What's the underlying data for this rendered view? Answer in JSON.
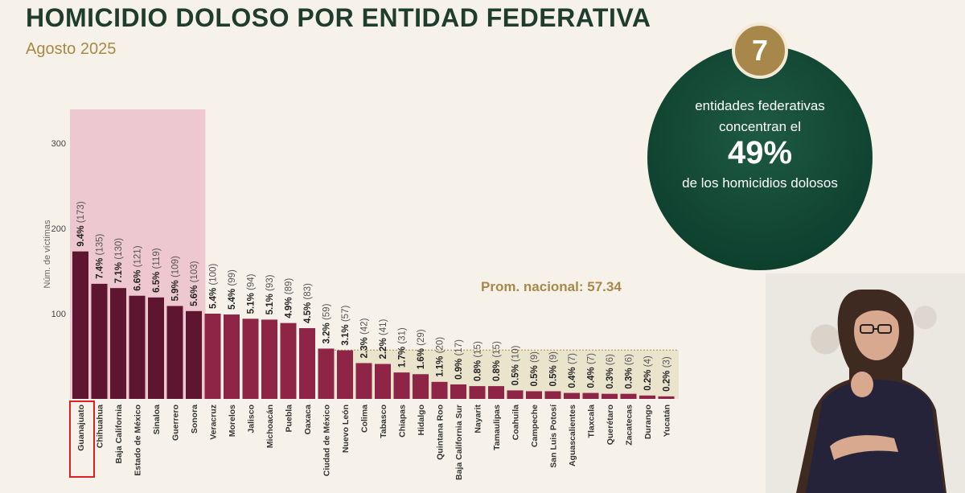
{
  "header": {
    "title": "HOMICIDIO DOLOSO POR ENTIDAD FEDERATIVA",
    "subtitle": "Agosto 2025"
  },
  "callout": {
    "count": "7",
    "line1": "entidades federativas",
    "line2": "concentran el",
    "percent": "49%",
    "line4": "de los homicidios dolosos"
  },
  "colors": {
    "highlight_bars": "#5e1530",
    "other_bars": "#8e2446",
    "highlight_area": "#edc8d1",
    "average_area": "#ebe4cd",
    "average_label": "#a8884a",
    "circle": "#0f4230",
    "badge": "#a8884a"
  },
  "interpreter_panel": {
    "content": "sign-language-interpreter-video"
  },
  "chart_data": {
    "type": "bar",
    "ylabel": "Núm. de víctimas",
    "xlabel": "",
    "ylim": [
      0,
      300
    ],
    "yticks": [
      100,
      200,
      300
    ],
    "categories": [
      "Guanajuato",
      "Chihuahua",
      "Baja California",
      "Estado de México",
      "Sinaloa",
      "Guerrero",
      "Sonora",
      "Veracruz",
      "Morelos",
      "Jalisco",
      "Michoacán",
      "Puebla",
      "Oaxaca",
      "Ciudad de México",
      "Nuevo León",
      "Colima",
      "Tabasco",
      "Chiapas",
      "Hidalgo",
      "Quintana Roo",
      "Baja California Sur",
      "Nayarit",
      "Tamaulipas",
      "Coahuila",
      "Campeche",
      "San Luis Potosí",
      "Aguascalientes",
      "Tlaxcala",
      "Querétaro",
      "Zacatecas",
      "Durango",
      "Yucatán"
    ],
    "values": [
      173,
      135,
      130,
      121,
      119,
      109,
      103,
      100,
      99,
      94,
      93,
      89,
      83,
      59,
      57,
      42,
      41,
      31,
      29,
      20,
      17,
      15,
      15,
      10,
      9,
      9,
      7,
      7,
      6,
      6,
      4,
      3
    ],
    "pct_labels": [
      "9.4%",
      "7.4%",
      "7.1%",
      "6.6%",
      "6.5%",
      "5.9%",
      "5.6%",
      "5.4%",
      "5.4%",
      "5.1%",
      "5.1%",
      "4.9%",
      "4.5%",
      "3.2%",
      "3.1%",
      "2.3%",
      "2.2%",
      "1.7%",
      "1.6%",
      "1.1%",
      "0.9%",
      "0.8%",
      "0.8%",
      "0.5%",
      "0.5%",
      "0.5%",
      "0.4%",
      "0.4%",
      "0.3%",
      "0.3%",
      "0.2%",
      "0.2%"
    ],
    "count_labels": [
      "(173)",
      "(135)",
      "(130)",
      "(121)",
      "(119)",
      "(109)",
      "(103)",
      "(100)",
      "(99)",
      "(94)",
      "(93)",
      "(89)",
      "(83)",
      "(59)",
      "(57)",
      "(42)",
      "(41)",
      "(31)",
      "(29)",
      "(20)",
      "(17)",
      "(15)",
      "(15)",
      "(10)",
      "(9)",
      "(9)",
      "(7)",
      "(7)",
      "(6)",
      "(6)",
      "(4)",
      "(3)"
    ],
    "highlighted_count": 7,
    "boxed_category": "Guanajuato",
    "average_label": "Prom. nacional: 57.34",
    "average_value": 57.34,
    "grid": false
  }
}
